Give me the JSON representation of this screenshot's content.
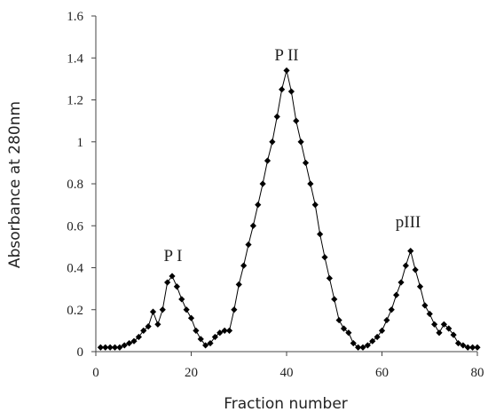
{
  "chart_data": {
    "type": "line",
    "xlabel": "Fraction  number",
    "ylabel": "Absorbance at 280nm",
    "annotations": [
      "P I",
      "P II",
      "pIII"
    ],
    "x": [
      1,
      2,
      3,
      4,
      5,
      6,
      7,
      8,
      9,
      10,
      11,
      12,
      13,
      14,
      15,
      16,
      17,
      18,
      19,
      20,
      21,
      22,
      23,
      24,
      25,
      26,
      27,
      28,
      29,
      30,
      31,
      32,
      33,
      34,
      35,
      36,
      37,
      38,
      39,
      40,
      41,
      42,
      43,
      44,
      45,
      46,
      47,
      48,
      49,
      50,
      51,
      52,
      53,
      54,
      55,
      56,
      57,
      58,
      59,
      60,
      61,
      62,
      63,
      64,
      65,
      66,
      67,
      68,
      69,
      70,
      71,
      72,
      73,
      74,
      75,
      76,
      77,
      78,
      79,
      80
    ],
    "series": [
      {
        "color": "#000000",
        "values": [
          0.02,
          0.02,
          0.02,
          0.02,
          0.02,
          0.03,
          0.04,
          0.05,
          0.07,
          0.1,
          0.12,
          0.19,
          0.13,
          0.2,
          0.33,
          0.36,
          0.31,
          0.25,
          0.2,
          0.16,
          0.1,
          0.06,
          0.03,
          0.04,
          0.07,
          0.09,
          0.1,
          0.1,
          0.2,
          0.32,
          0.41,
          0.51,
          0.6,
          0.7,
          0.8,
          0.91,
          1.0,
          1.12,
          1.25,
          1.34,
          1.24,
          1.1,
          1.0,
          0.9,
          0.8,
          0.7,
          0.56,
          0.45,
          0.35,
          0.25,
          0.15,
          0.11,
          0.09,
          0.04,
          0.02,
          0.02,
          0.03,
          0.05,
          0.07,
          0.1,
          0.15,
          0.2,
          0.27,
          0.33,
          0.41,
          0.48,
          0.39,
          0.31,
          0.22,
          0.18,
          0.13,
          0.09,
          0.13,
          0.11,
          0.08,
          0.04,
          0.03,
          0.02,
          0.02,
          0.02
        ]
      }
    ],
    "xlim": [
      0,
      80
    ],
    "xticks": [
      0,
      20,
      40,
      60,
      80
    ],
    "ylim": [
      0,
      1.6
    ],
    "yticks": [
      0,
      0.2,
      0.4,
      0.6,
      0.8,
      1,
      1.2,
      1.4,
      1.6
    ],
    "grid": false
  }
}
